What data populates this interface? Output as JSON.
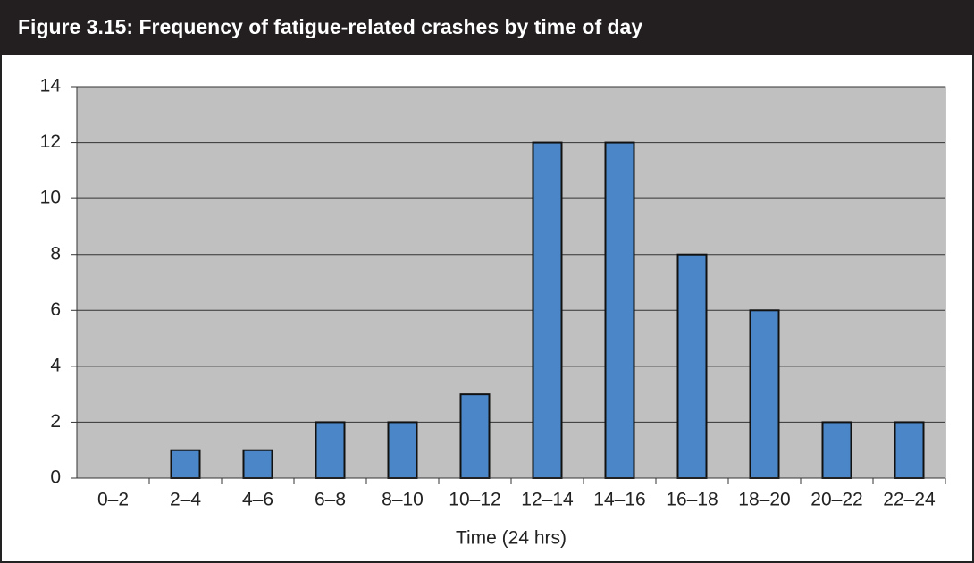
{
  "chart_data": {
    "type": "bar",
    "title": "Figure 3.15:  Frequency of fatigue-related crashes by time of day",
    "x_label": "Time (24 hrs)",
    "categories": [
      "0–2",
      "2–4",
      "4–6",
      "6–8",
      "8–10",
      "10–12",
      "12–14",
      "14–16",
      "16–18",
      "18–20",
      "20–22",
      "22–24"
    ],
    "values": [
      0,
      1,
      1,
      2,
      2,
      3,
      12,
      12,
      8,
      6,
      2,
      2
    ],
    "color": "#4a86c8",
    "ylim": [
      0,
      14
    ],
    "yticks": [
      0,
      2,
      4,
      6,
      8,
      10,
      12,
      14
    ],
    "grid": true
  }
}
